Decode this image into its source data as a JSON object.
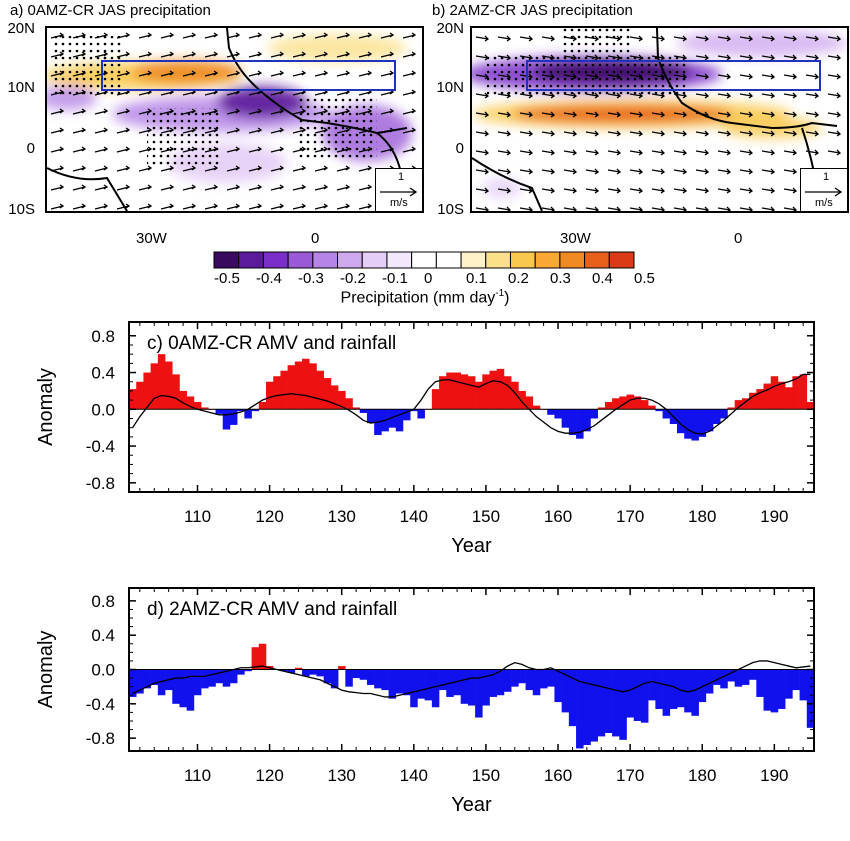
{
  "map_a": {
    "title": "a) 0AMZ-CR JAS precipitation",
    "lat_labels": [
      "20N",
      "10N",
      "0",
      "10S"
    ],
    "lon_labels": [
      "30W",
      "0"
    ],
    "key_value": "1",
    "key_unit": "m/s"
  },
  "map_b": {
    "title": "b) 2AMZ-CR JAS precipitation",
    "lat_labels": [
      "20N",
      "10N",
      "0",
      "10S"
    ],
    "lon_labels": [
      "30W",
      "0"
    ],
    "key_value": "1",
    "key_unit": "m/s"
  },
  "colorbar": {
    "labels": [
      "-0.5",
      "-0.4",
      "-0.3",
      "-0.2",
      "-0.1",
      "0",
      "0.1",
      "0.2",
      "0.3",
      "0.4",
      "0.5"
    ],
    "title_main": "Precipitation (mm day",
    "title_sup": "-1",
    "title_end": ")",
    "colors": [
      "#3a0a5e",
      "#5b1a9a",
      "#7a2fc8",
      "#9a5ad8",
      "#b584e6",
      "#cfaaf0",
      "#e4cdf7",
      "#f3e8fb",
      "#ffffff",
      "#ffffff",
      "#fdf1c8",
      "#fbe08a",
      "#f9c94f",
      "#f7a934",
      "#f08a22",
      "#e8601a",
      "#db3a16"
    ]
  },
  "chart_data": [
    {
      "type": "bar",
      "title": "c) 0AMZ-CR AMV and rainfall",
      "xlabel": "Year",
      "ylabel": "Anomaly",
      "xlim": [
        100.5,
        195.5
      ],
      "ylim": [
        -0.9,
        0.95
      ],
      "xticks": [
        110,
        120,
        130,
        140,
        150,
        160,
        170,
        180,
        190
      ],
      "yticks": [
        -0.8,
        -0.4,
        0.0,
        0.4,
        0.8
      ],
      "ytick_labels": [
        "-0.8",
        "-0.4",
        "0.0",
        "0.4",
        "0.8"
      ],
      "bar_colors": {
        "positive": "#ee1111",
        "negative": "#1111ee"
      },
      "years": [
        101,
        102,
        103,
        104,
        105,
        106,
        107,
        108,
        109,
        110,
        111,
        112,
        113,
        114,
        115,
        116,
        117,
        118,
        119,
        120,
        121,
        122,
        123,
        124,
        125,
        126,
        127,
        128,
        129,
        130,
        131,
        132,
        133,
        134,
        135,
        136,
        137,
        138,
        139,
        140,
        141,
        142,
        143,
        144,
        145,
        146,
        147,
        148,
        149,
        150,
        151,
        152,
        153,
        154,
        155,
        156,
        157,
        158,
        159,
        160,
        161,
        162,
        163,
        164,
        165,
        166,
        167,
        168,
        169,
        170,
        171,
        172,
        173,
        174,
        175,
        176,
        177,
        178,
        179,
        180,
        181,
        182,
        183,
        184,
        185,
        186,
        187,
        188,
        189,
        190,
        191,
        192,
        193,
        194,
        195
      ],
      "rainfall": [
        0.22,
        0.3,
        0.4,
        0.5,
        0.6,
        0.52,
        0.38,
        0.2,
        0.14,
        0.08,
        0.02,
        0.0,
        -0.05,
        -0.22,
        -0.17,
        -0.02,
        -0.1,
        -0.02,
        0.08,
        0.3,
        0.36,
        0.42,
        0.48,
        0.52,
        0.55,
        0.5,
        0.42,
        0.34,
        0.26,
        0.2,
        0.12,
        0.02,
        -0.04,
        -0.15,
        -0.28,
        -0.24,
        -0.2,
        -0.24,
        -0.12,
        -0.02,
        -0.1,
        0.0,
        0.22,
        0.36,
        0.4,
        0.4,
        0.38,
        0.36,
        0.3,
        0.38,
        0.42,
        0.44,
        0.36,
        0.3,
        0.2,
        0.14,
        0.04,
        0.0,
        -0.06,
        -0.1,
        -0.2,
        -0.28,
        -0.32,
        -0.24,
        -0.1,
        0.02,
        0.08,
        0.12,
        0.14,
        0.16,
        0.14,
        0.1,
        0.04,
        -0.02,
        -0.1,
        -0.16,
        -0.26,
        -0.32,
        -0.34,
        -0.3,
        -0.24,
        -0.16,
        -0.1,
        0.02,
        0.1,
        0.12,
        0.18,
        0.22,
        0.28,
        0.36,
        0.3,
        0.24,
        0.36,
        0.38,
        0.08
      ],
      "amv": [
        -0.2,
        -0.08,
        0.02,
        0.12,
        0.15,
        0.14,
        0.12,
        0.07,
        0.03,
        0.0,
        -0.02,
        -0.04,
        -0.06,
        -0.06,
        -0.05,
        -0.03,
        0.0,
        0.05,
        0.1,
        0.13,
        0.15,
        0.16,
        0.17,
        0.16,
        0.15,
        0.13,
        0.11,
        0.09,
        0.06,
        0.03,
        -0.01,
        -0.06,
        -0.12,
        -0.15,
        -0.14,
        -0.12,
        -0.09,
        -0.06,
        -0.03,
        0.0,
        0.1,
        0.22,
        0.3,
        0.32,
        0.32,
        0.3,
        0.28,
        0.26,
        0.24,
        0.28,
        0.31,
        0.3,
        0.26,
        0.18,
        0.08,
        0.0,
        -0.08,
        -0.14,
        -0.2,
        -0.24,
        -0.26,
        -0.26,
        -0.25,
        -0.22,
        -0.18,
        -0.12,
        -0.06,
        0.0,
        0.05,
        0.1,
        0.12,
        0.12,
        0.1,
        0.06,
        0.0,
        -0.08,
        -0.16,
        -0.22,
        -0.26,
        -0.27,
        -0.24,
        -0.18,
        -0.12,
        -0.05,
        0.02,
        0.08,
        0.14,
        0.18,
        0.21,
        0.25,
        0.28,
        0.3,
        0.33,
        0.38,
        0.38
      ]
    },
    {
      "type": "bar",
      "title": "d) 2AMZ-CR AMV and rainfall",
      "xlabel": "Year",
      "ylabel": "Anomaly",
      "xlim": [
        100.5,
        195.5
      ],
      "ylim": [
        -0.95,
        0.95
      ],
      "xticks": [
        110,
        120,
        130,
        140,
        150,
        160,
        170,
        180,
        190
      ],
      "yticks": [
        -0.8,
        -0.4,
        0.0,
        0.4,
        0.8
      ],
      "ytick_labels": [
        "-0.8",
        "-0.4",
        "0.0",
        "0.4",
        "0.8"
      ],
      "bar_colors": {
        "positive": "#ee1111",
        "negative": "#1111ee"
      },
      "years": [
        101,
        102,
        103,
        104,
        105,
        106,
        107,
        108,
        109,
        110,
        111,
        112,
        113,
        114,
        115,
        116,
        117,
        118,
        119,
        120,
        121,
        122,
        123,
        124,
        125,
        126,
        127,
        128,
        129,
        130,
        131,
        132,
        133,
        134,
        135,
        136,
        137,
        138,
        139,
        140,
        141,
        142,
        143,
        144,
        145,
        146,
        147,
        148,
        149,
        150,
        151,
        152,
        153,
        154,
        155,
        156,
        157,
        158,
        159,
        160,
        161,
        162,
        163,
        164,
        165,
        166,
        167,
        168,
        169,
        170,
        171,
        172,
        173,
        174,
        175,
        176,
        177,
        178,
        179,
        180,
        181,
        182,
        183,
        184,
        185,
        186,
        187,
        188,
        189,
        190,
        191,
        192,
        193,
        194,
        195
      ],
      "rainfall": [
        -0.32,
        -0.28,
        -0.22,
        -0.18,
        -0.3,
        -0.24,
        -0.4,
        -0.44,
        -0.48,
        -0.3,
        -0.22,
        -0.2,
        -0.16,
        -0.2,
        -0.16,
        -0.06,
        -0.02,
        0.26,
        0.3,
        0.04,
        0.0,
        -0.02,
        -0.04,
        0.02,
        -0.08,
        -0.06,
        -0.08,
        -0.16,
        -0.22,
        0.04,
        -0.2,
        -0.1,
        -0.12,
        -0.18,
        -0.22,
        -0.24,
        -0.34,
        -0.28,
        -0.3,
        -0.44,
        -0.34,
        -0.36,
        -0.44,
        -0.24,
        -0.32,
        -0.3,
        -0.4,
        -0.42,
        -0.56,
        -0.42,
        -0.32,
        -0.3,
        -0.26,
        -0.2,
        -0.16,
        -0.24,
        -0.3,
        -0.22,
        -0.2,
        -0.38,
        -0.5,
        -0.66,
        -0.92,
        -0.88,
        -0.84,
        -0.78,
        -0.74,
        -0.78,
        -0.82,
        -0.56,
        -0.6,
        -0.62,
        -0.36,
        -0.46,
        -0.54,
        -0.46,
        -0.44,
        -0.5,
        -0.54,
        -0.38,
        -0.28,
        -0.18,
        -0.22,
        -0.14,
        -0.2,
        -0.18,
        -0.12,
        -0.32,
        -0.48,
        -0.5,
        -0.46,
        -0.34,
        -0.24,
        -0.36,
        -0.68
      ],
      "amv": [
        -0.28,
        -0.24,
        -0.2,
        -0.16,
        -0.14,
        -0.12,
        -0.1,
        -0.1,
        -0.08,
        -0.08,
        -0.08,
        -0.06,
        -0.04,
        -0.02,
        0.0,
        0.02,
        0.02,
        0.03,
        0.04,
        0.02,
        0.0,
        -0.02,
        -0.04,
        -0.06,
        -0.08,
        -0.1,
        -0.12,
        -0.16,
        -0.2,
        -0.24,
        -0.26,
        -0.27,
        -0.28,
        -0.28,
        -0.3,
        -0.32,
        -0.32,
        -0.3,
        -0.28,
        -0.26,
        -0.24,
        -0.22,
        -0.2,
        -0.18,
        -0.16,
        -0.14,
        -0.12,
        -0.1,
        -0.1,
        -0.08,
        -0.06,
        -0.02,
        0.04,
        0.08,
        0.06,
        0.02,
        0.0,
        0.0,
        0.02,
        -0.02,
        -0.06,
        -0.1,
        -0.14,
        -0.16,
        -0.18,
        -0.2,
        -0.22,
        -0.24,
        -0.26,
        -0.24,
        -0.2,
        -0.16,
        -0.14,
        -0.16,
        -0.18,
        -0.2,
        -0.24,
        -0.26,
        -0.24,
        -0.2,
        -0.16,
        -0.12,
        -0.08,
        -0.04,
        0.0,
        0.04,
        0.08,
        0.1,
        0.1,
        0.08,
        0.06,
        0.04,
        0.02,
        0.03,
        0.04
      ]
    }
  ]
}
